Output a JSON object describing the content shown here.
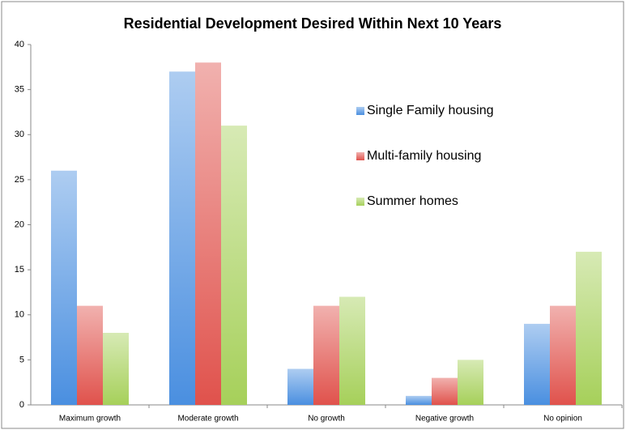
{
  "chart_data": {
    "type": "bar",
    "title": "Residential Development Desired Within Next 10 Years",
    "categories": [
      "Maximum growth",
      "Moderate growth",
      "No growth",
      "Negative growth",
      "No opinion"
    ],
    "series": [
      {
        "name": "Single Family housing",
        "color": "#4a8fe0",
        "values": [
          26,
          37,
          4,
          1,
          9
        ]
      },
      {
        "name": "Multi-family housing",
        "color": "#e0524c",
        "values": [
          11,
          38,
          11,
          3,
          11
        ]
      },
      {
        "name": "Summer homes",
        "color": "#a6d05a",
        "values": [
          8,
          31,
          12,
          5,
          17
        ]
      }
    ],
    "ylim": [
      0,
      40
    ],
    "yticks": [
      0,
      5,
      10,
      15,
      20,
      25,
      30,
      35,
      40
    ],
    "grid": false,
    "legend": "right"
  }
}
